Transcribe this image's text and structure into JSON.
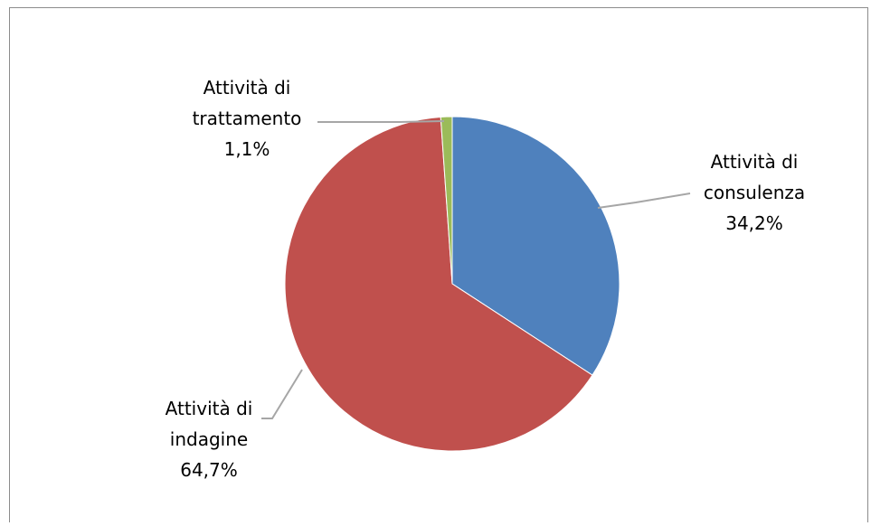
{
  "chart_data": {
    "type": "pie",
    "title": "",
    "legend": "none",
    "slices": [
      {
        "name": "Attività di consulenza",
        "value": 34.2,
        "label_lines": [
          "Attività di",
          "consulenza",
          "34,2%"
        ],
        "color": "#4F81BD"
      },
      {
        "name": "Attività di indagine",
        "value": 64.7,
        "label_lines": [
          "Attività di",
          "indagine",
          "64,7%"
        ],
        "color": "#C0504D"
      },
      {
        "name": "Attività di trattamento",
        "value": 1.1,
        "label_lines": [
          "Attività di",
          "trattamento",
          "1,1%"
        ],
        "color": "#9BBB59"
      }
    ]
  }
}
